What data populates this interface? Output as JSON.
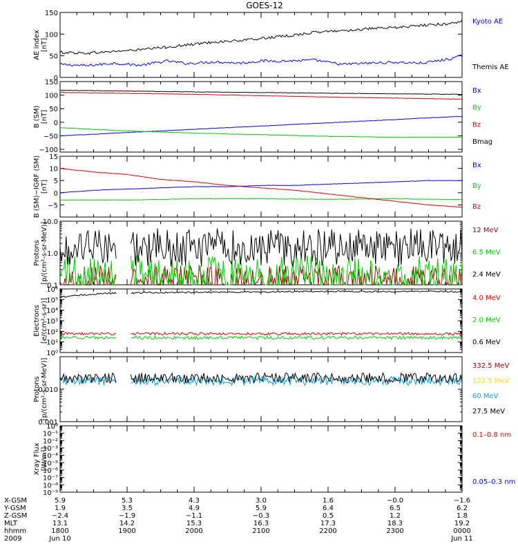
{
  "title": "GOES-12",
  "colors": {
    "black": "#000000",
    "blue": "#0000ff",
    "red": "#dd0000",
    "green": "#00cc00",
    "darkred": "#a00000",
    "yellow": "#ffd400",
    "cyan": "#00a0e0"
  },
  "chart_data": [
    {
      "type": "line",
      "panel": "ae",
      "ylabel": [
        "AE index",
        "[nT]"
      ],
      "ylim": [
        0,
        150
      ],
      "ylog": false,
      "yticks": [
        0,
        50,
        100,
        150
      ],
      "ytick_labels": [
        "0",
        "50",
        "100",
        "150"
      ],
      "x_range_hours": [
        18.0,
        24.0
      ],
      "series": [
        {
          "name": "Kyoto AE",
          "color": "blue",
          "x": [
            18.0,
            18.4,
            18.8,
            19.2,
            19.6,
            19.9,
            20.3,
            20.7,
            21.0,
            21.4,
            21.8,
            22.2,
            22.6,
            23.0,
            23.4,
            23.8,
            24.0
          ],
          "y": [
            30,
            27,
            33,
            28,
            38,
            32,
            36,
            33,
            38,
            38,
            40,
            30,
            33,
            35,
            33,
            42,
            50
          ]
        },
        {
          "name": "Themis AE",
          "color": "black",
          "x": [
            18.0,
            18.4,
            18.8,
            19.2,
            19.6,
            19.9,
            20.3,
            20.7,
            21.0,
            21.4,
            21.8,
            22.2,
            22.6,
            23.0,
            23.4,
            23.8,
            24.0
          ],
          "y": [
            58,
            56,
            60,
            64,
            70,
            75,
            82,
            85,
            90,
            96,
            104,
            108,
            112,
            115,
            120,
            124,
            130
          ]
        }
      ]
    },
    {
      "type": "line",
      "panel": "b_sm",
      "ylabel": [
        "B (SM)",
        "[nT]"
      ],
      "ylim": [
        -110,
        150
      ],
      "ylog": false,
      "yticks": [
        -100,
        -50,
        0,
        50,
        100,
        150
      ],
      "ytick_labels": [
        "−100",
        "−50",
        "0",
        "50",
        "100",
        "150"
      ],
      "x_range_hours": [
        18.0,
        24.0
      ],
      "series": [
        {
          "name": "Bx",
          "color": "blue",
          "x": [
            18.0,
            24.0
          ],
          "y": [
            -50,
            22
          ]
        },
        {
          "name": "By",
          "color": "green",
          "x": [
            18.0,
            19.0,
            20.0,
            21.0,
            22.0,
            23.0,
            24.0
          ],
          "y": [
            -20,
            -32,
            -40,
            -46,
            -52,
            -55,
            -55
          ]
        },
        {
          "name": "Bz",
          "color": "red",
          "x": [
            18.0,
            20.0,
            22.0,
            24.0
          ],
          "y": [
            110,
            103,
            93,
            85
          ]
        },
        {
          "name": "Bmag",
          "color": "black",
          "x": [
            18.0,
            20.0,
            22.0,
            24.0
          ],
          "y": [
            118,
            112,
            107,
            103
          ]
        }
      ]
    },
    {
      "type": "line",
      "panel": "b_igrf",
      "ylabel": [
        "B (SM)−IGRF (SM)",
        "[nT]"
      ],
      "ylim": [
        -10,
        15
      ],
      "ylog": false,
      "yticks": [
        -5,
        0,
        5,
        10,
        15
      ],
      "ytick_labels": [
        "−5",
        "0",
        "5",
        "10",
        "15"
      ],
      "x_range_hours": [
        18.0,
        24.0
      ],
      "series": [
        {
          "name": "Bx",
          "color": "blue",
          "x": [
            18.0,
            18.5,
            19.0,
            19.5,
            20.0,
            20.5,
            21.0,
            21.5,
            22.0,
            22.5,
            23.0,
            23.5,
            24.0
          ],
          "y": [
            0,
            1,
            1.5,
            2,
            2.5,
            2.5,
            3,
            3,
            3.5,
            4,
            4.5,
            5,
            5
          ]
        },
        {
          "name": "By",
          "color": "green",
          "x": [
            18.0,
            19.0,
            20.0,
            21.0,
            22.0,
            23.0,
            24.0
          ],
          "y": [
            -3,
            -3,
            -2.5,
            -2.5,
            -2.7,
            -2.5,
            -2.8
          ]
        },
        {
          "name": "Bz",
          "color": "red",
          "x": [
            18.0,
            18.5,
            19.0,
            19.5,
            20.0,
            20.5,
            21.0,
            21.5,
            22.0,
            22.5,
            23.0,
            23.5,
            24.0
          ],
          "y": [
            10,
            8.5,
            7.5,
            5.5,
            4.5,
            3,
            2,
            1,
            -0.5,
            -2,
            -3.5,
            -5,
            -6
          ]
        }
      ]
    },
    {
      "type": "line",
      "panel": "protons_low",
      "ylabel": [
        "Protons",
        "[p/(cm²-s-sr-MeV)]"
      ],
      "ylim": [
        0.1,
        10
      ],
      "ylog": true,
      "yticks": [
        0.1,
        1,
        10
      ],
      "ytick_labels": [
        "0.1",
        "1.0",
        "10.0"
      ],
      "x_range_hours": [
        18.0,
        24.0
      ],
      "gap_hours": [
        18.85,
        19.05
      ],
      "series": [
        {
          "name": "12 MeV",
          "color": "darkred",
          "level": 0.13,
          "spread": 1.0
        },
        {
          "name": "6.5 MeV",
          "color": "green",
          "level": 0.17,
          "spread": 1.4
        },
        {
          "name": "2.4 MeV",
          "color": "black",
          "level": 1.5,
          "spread": 1.2
        }
      ]
    },
    {
      "type": "line",
      "panel": "electrons",
      "ylabel": [
        "Electrons",
        "[e/(cm²-s-sr)]"
      ],
      "ylim": [
        1,
        1000000
      ],
      "ylog": true,
      "yticks": [
        1,
        10,
        100,
        1000,
        10000,
        100000,
        1000000
      ],
      "ytick_labels": [
        "10⁰",
        "10¹",
        "10²",
        "10³",
        "10⁴",
        "10⁵",
        "10⁶"
      ],
      "x_range_hours": [
        18.0,
        24.0
      ],
      "gap_hours": [
        18.85,
        19.05
      ],
      "series": [
        {
          "name": "4.0 MeV",
          "color": "red",
          "level": 60,
          "spread": 0.25
        },
        {
          "name": "2.0 MeV",
          "color": "green",
          "level": 25,
          "spread": 0.3
        },
        {
          "name": "0.6 MeV",
          "color": "black",
          "x": [
            18.0,
            18.5,
            19.0,
            19.5,
            20.0,
            21.0,
            22.0,
            23.0,
            24.0
          ],
          "y": [
            150000,
            330000,
            420000,
            450000,
            480000,
            520000,
            600000,
            560000,
            560000
          ]
        }
      ]
    },
    {
      "type": "line",
      "panel": "protons_high",
      "ylabel": [
        "Protons",
        "[p/(cm²-s-sr-MeV)]"
      ],
      "ylim": [
        0.001,
        0.1
      ],
      "ylog": true,
      "yticks": [
        0.001,
        0.01
      ],
      "ytick_labels": [
        "0.001",
        "0.010"
      ],
      "x_range_hours": [
        18.0,
        24.0
      ],
      "gap_hours": [
        18.85,
        19.05
      ],
      "series": [
        {
          "name": "332.5 MeV",
          "color": "darkred"
        },
        {
          "name": "122.5 MeV",
          "color": "yellow"
        },
        {
          "name": "60 MeV",
          "color": "cyan",
          "level": 0.018,
          "spread": 0.28
        },
        {
          "name": "27.5 MeV",
          "color": "black",
          "level": 0.022,
          "spread": 0.32
        }
      ]
    },
    {
      "type": "line",
      "panel": "xray",
      "ylabel": [
        "Xray Flux",
        "[W/m²]"
      ],
      "ylim": [
        1e-09,
        1
      ],
      "ylog": true,
      "yticks": [
        1e-09,
        1e-08,
        1e-07,
        1e-06,
        1e-05,
        0.0001,
        0.001,
        0.01,
        0.1,
        1
      ],
      "ytick_labels": [
        "10⁻⁹",
        "10⁻⁸",
        "10⁻⁷",
        "10⁻⁶",
        "10⁻⁵",
        "10⁻⁴",
        "10⁻³",
        "10⁻²",
        "10⁻¹",
        "10⁰"
      ],
      "x_range_hours": [
        18.0,
        24.0
      ],
      "series": [
        {
          "name": "0.1–0.8 nm",
          "color": "red"
        },
        {
          "name": "0.05–0.3 nm",
          "color": "blue"
        }
      ]
    }
  ],
  "x_axis": {
    "row_labels": [
      "X-GSM",
      "Y-GSM",
      "Z-GSM",
      "MLT",
      "hhmm",
      "2009"
    ],
    "columns": [
      {
        "hour": 18,
        "values": [
          "5.9",
          "1.9",
          "−2.4",
          "13.1",
          "1800",
          "Jun 10"
        ]
      },
      {
        "hour": 19,
        "values": [
          "5.3",
          "3.5",
          "−1.9",
          "14.2",
          "1900",
          ""
        ]
      },
      {
        "hour": 20,
        "values": [
          "4.3",
          "4.9",
          "−1.1",
          "15.3",
          "2000",
          ""
        ]
      },
      {
        "hour": 21,
        "values": [
          "3.0",
          "5.9",
          "−0.3",
          "16.3",
          "2100",
          ""
        ]
      },
      {
        "hour": 22,
        "values": [
          "1.6",
          "6.4",
          "0.5",
          "17.3",
          "2200",
          ""
        ]
      },
      {
        "hour": 23,
        "values": [
          "−0.0",
          "6.5",
          "1.2",
          "18.3",
          "2300",
          ""
        ]
      },
      {
        "hour": 24,
        "values": [
          "−1.6",
          "6.2",
          "1.8",
          "19.2",
          "0000",
          "Jun 11"
        ]
      }
    ]
  }
}
